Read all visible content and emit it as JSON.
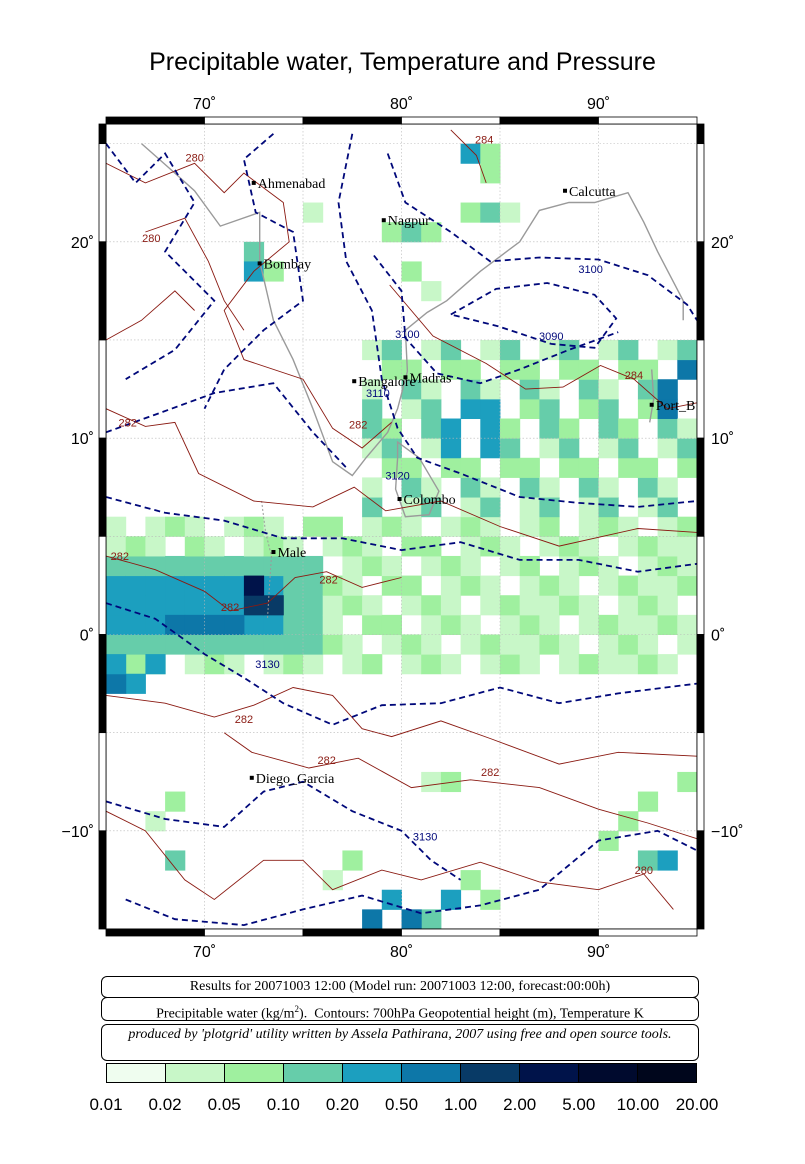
{
  "title": "Precipitable water, Temperature and Pressure",
  "axes": {
    "lon_ticks": [
      {
        "value": 70,
        "label": "70˚"
      },
      {
        "value": 80,
        "label": "80˚"
      },
      {
        "value": 90,
        "label": "90˚"
      }
    ],
    "lat_ticks": [
      {
        "value": 20,
        "label": "20˚"
      },
      {
        "value": 10,
        "label": "10˚"
      },
      {
        "value": 0,
        "label": "0˚"
      },
      {
        "value": -10,
        "label": "−10˚"
      }
    ],
    "lon_range": [
      65,
      95
    ],
    "lat_range": [
      -15,
      26
    ]
  },
  "cities": [
    {
      "name": "Ahmenabad",
      "lon": 72.5,
      "lat": 23.0
    },
    {
      "name": "Nagpur",
      "lon": 79.1,
      "lat": 21.1
    },
    {
      "name": "Calcutta",
      "lon": 88.3,
      "lat": 22.6
    },
    {
      "name": "Bombay",
      "lon": 72.8,
      "lat": 18.9
    },
    {
      "name": "Bangalore",
      "lon": 77.6,
      "lat": 12.9
    },
    {
      "name": "Madras",
      "lon": 80.2,
      "lat": 13.1
    },
    {
      "name": "Port_B",
      "lon": 92.7,
      "lat": 11.7
    },
    {
      "name": "Colombo",
      "lon": 79.9,
      "lat": 6.9
    },
    {
      "name": "Male",
      "lon": 73.5,
      "lat": 4.2
    },
    {
      "name": "Diego_Garcia",
      "lon": 72.4,
      "lat": -7.3
    }
  ],
  "temperature_labels": [
    {
      "text": "280",
      "lon": 69.5,
      "lat": 24.1
    },
    {
      "text": "280",
      "lon": 67.3,
      "lat": 20.0
    },
    {
      "text": "282",
      "lon": 66.1,
      "lat": 10.6
    },
    {
      "text": "282",
      "lon": 77.8,
      "lat": 10.5
    },
    {
      "text": "282",
      "lon": 65.7,
      "lat": 3.8
    },
    {
      "text": "282",
      "lon": 76.3,
      "lat": 2.6
    },
    {
      "text": "282",
      "lon": 71.3,
      "lat": 1.2
    },
    {
      "text": "282",
      "lon": 72.0,
      "lat": -4.5
    },
    {
      "text": "282",
      "lon": 76.2,
      "lat": -6.6
    },
    {
      "text": "282",
      "lon": 84.5,
      "lat": -7.2
    },
    {
      "text": "284",
      "lon": 91.8,
      "lat": 13.0
    },
    {
      "text": "284",
      "lon": 84.2,
      "lat": 25.0
    },
    {
      "text": "280",
      "lon": 92.3,
      "lat": -12.2
    }
  ],
  "height_labels": [
    {
      "text": "3100",
      "lon": 89.6,
      "lat": 18.4
    },
    {
      "text": "3100",
      "lon": 80.3,
      "lat": 15.1
    },
    {
      "text": "3090",
      "lon": 87.6,
      "lat": 15.0
    },
    {
      "text": "3110",
      "lon": 78.8,
      "lat": 12.1
    },
    {
      "text": "3120",
      "lon": 79.8,
      "lat": 7.9
    },
    {
      "text": "3130",
      "lon": 73.2,
      "lat": -1.7
    },
    {
      "text": "3130",
      "lon": 81.2,
      "lat": -10.5
    }
  ],
  "info": {
    "line1": "Results for 20071003 12:00 (Model run: 20071003 12:00, forecast:00:00h)",
    "line2": "Precipitable water (kg/m²).  Contours: 700hPa Geopotential height (m), Temperature K",
    "line3": "produced by 'plotgrid' utility written by Assela Pathirana, 2007 using free and open source tools."
  },
  "colorbar": {
    "labels": [
      "0.01",
      "0.02",
      "0.05",
      "0.10",
      "0.20",
      "0.50",
      "1.00",
      "2.00",
      "5.00",
      "10.00",
      "20.00"
    ],
    "colors": [
      "#effdef",
      "#c8f7c8",
      "#9ff09f",
      "#66cdaa",
      "#1c9fbf",
      "#0d77a8",
      "#083a66",
      "#00134a",
      "#000a2e",
      "#00061c"
    ]
  },
  "colors": {
    "height_contour": "#00087a",
    "temperature_contour": "#8a1a12",
    "coastline": "#9a9a9a",
    "grid": "#b8b8b8"
  }
}
